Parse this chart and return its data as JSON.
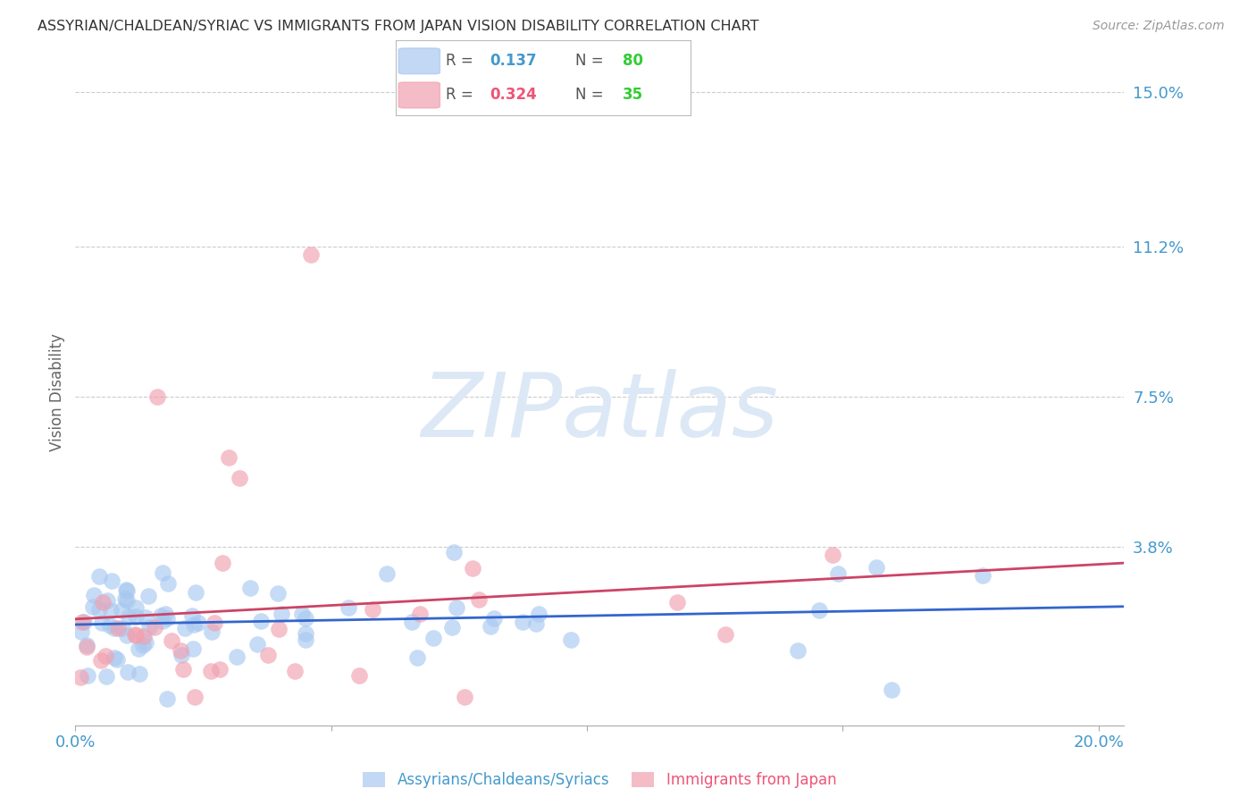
{
  "title": "ASSYRIAN/CHALDEAN/SYRIAC VS IMMIGRANTS FROM JAPAN VISION DISABILITY CORRELATION CHART",
  "source": "Source: ZipAtlas.com",
  "ylabel": "Vision Disability",
  "background_color": "#ffffff",
  "watermark_text": "ZIPatlas",
  "watermark_color": "#dce8f5",
  "series1_color": "#a8c8f0",
  "series2_color": "#f0a0b0",
  "series1_line_color": "#3366cc",
  "series2_line_color": "#cc4466",
  "series1_label": "Assyrians/Chaldeans/Syriacs",
  "series2_label": "Immigrants from Japan",
  "series1_R": "0.137",
  "series1_N": "80",
  "series2_R": "0.324",
  "series2_N": "35",
  "blue_R_color": "#4499cc",
  "blue_N_color": "#33cc33",
  "pink_R_color": "#ee5577",
  "pink_N_color": "#33cc33",
  "right_tick_color": "#4499cc",
  "xtick_color": "#4499cc",
  "xlim": [
    0.0,
    0.205
  ],
  "ylim": [
    -0.006,
    0.158
  ],
  "ytick_vals": [
    0.038,
    0.075,
    0.112,
    0.15
  ],
  "ytick_labels": [
    "3.8%",
    "7.5%",
    "11.2%",
    "15.0%"
  ]
}
